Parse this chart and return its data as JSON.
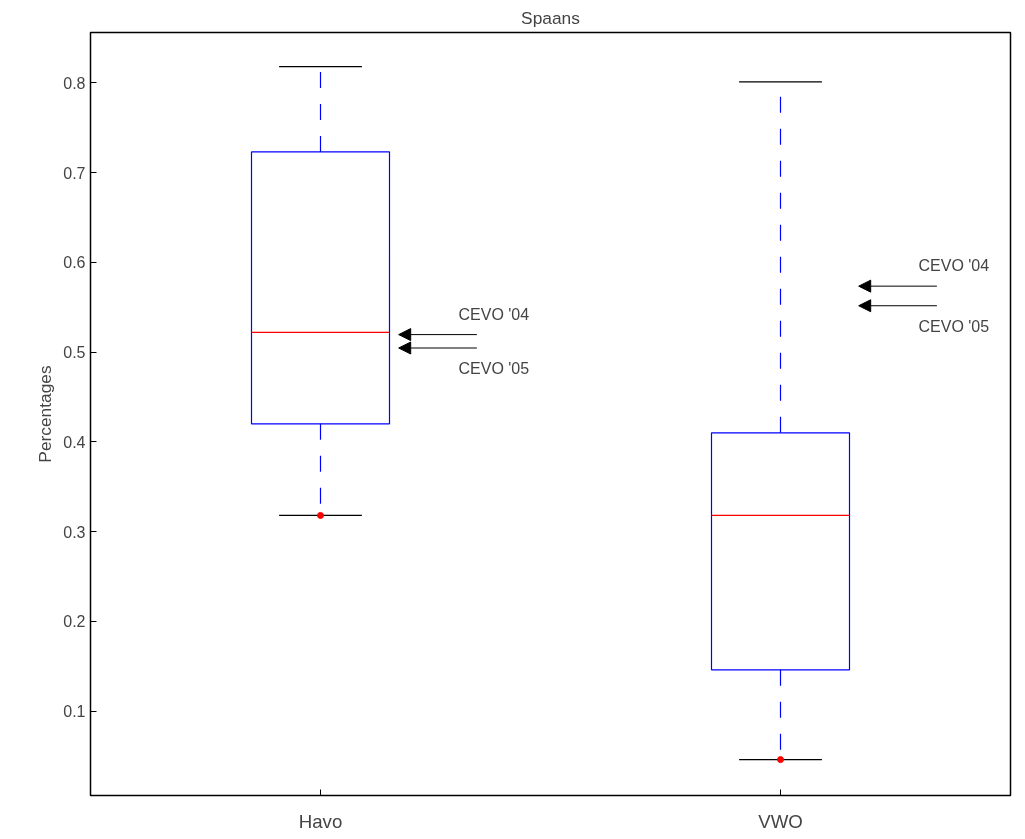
{
  "chart_data": {
    "type": "box",
    "title": "Spaans",
    "ylabel": "Percentages",
    "categories": [
      "Havo",
      "VWO"
    ],
    "series": [
      {
        "color": "#0000ff",
        "boxes": [
          {
            "low": 0.318,
            "q1": 0.42,
            "median": 0.522,
            "q3": 0.723,
            "high": 0.818,
            "outliers": [
              0.318
            ]
          },
          {
            "low": 0.046,
            "q1": 0.146,
            "median": 0.318,
            "q3": 0.41,
            "high": 0.801,
            "outliers": [
              0.046
            ]
          }
        ]
      }
    ],
    "marker": "circle",
    "ylim": [
      0.006,
      0.856
    ],
    "yticks": [
      0.1,
      0.2,
      0.3,
      0.4,
      0.5,
      0.6,
      0.7,
      0.8
    ],
    "annotations": [
      "CEVO '04",
      "CEVO '05",
      "CEVO '04",
      "CEVO '05"
    ]
  }
}
